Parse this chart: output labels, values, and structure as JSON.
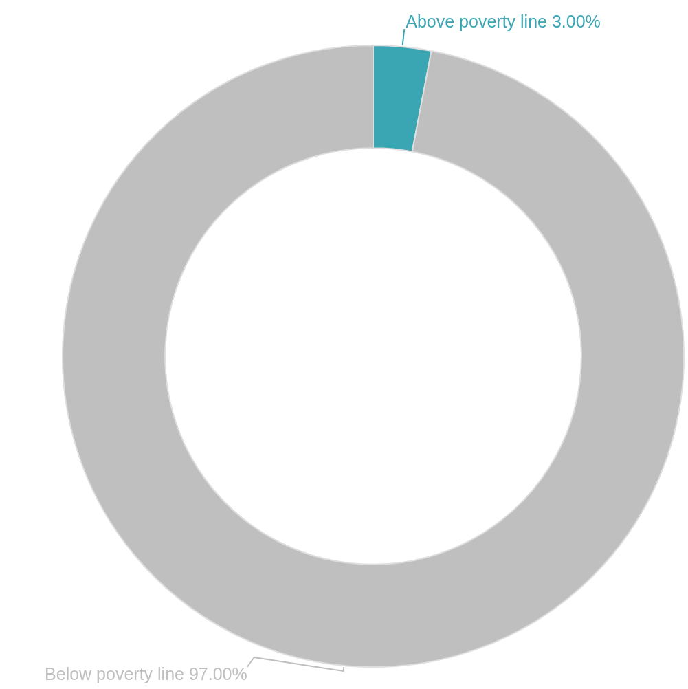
{
  "chart_data": {
    "type": "donut",
    "categories": [
      "Above poverty line",
      "Below poverty line"
    ],
    "values": [
      3,
      97
    ],
    "value_labels": [
      "3.00%",
      "97.00%"
    ],
    "colors": [
      "#3aa6b4",
      "#bfbfbf"
    ],
    "legend": false
  }
}
